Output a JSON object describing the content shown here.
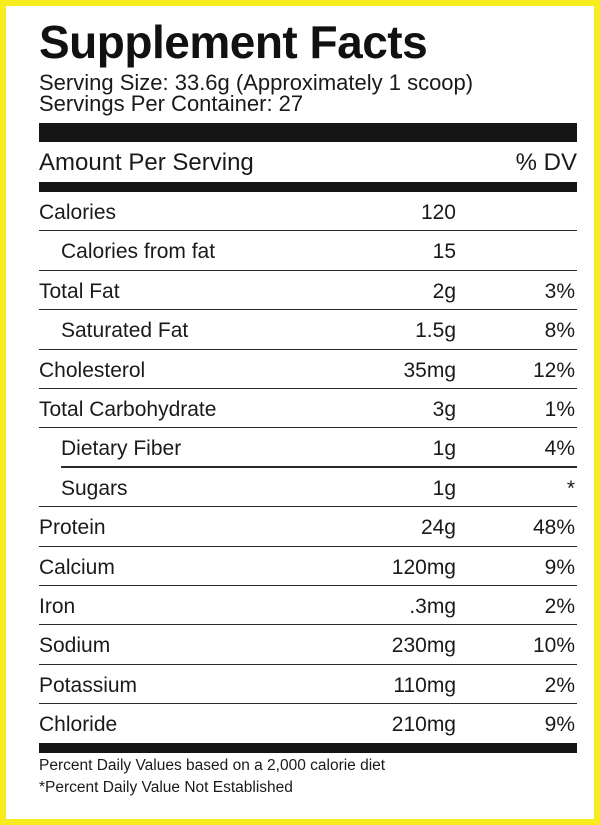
{
  "title": "Supplement Facts",
  "serving_size": "Serving Size: 33.6g (Approximately 1 scoop)",
  "servings_per_container": "Servings Per Container: 27",
  "amount_header": "Amount Per Serving",
  "dv_header": "% DV",
  "rows": [
    {
      "name": "Calories",
      "amount": "120",
      "dv": ""
    },
    {
      "name": "Calories from fat",
      "amount": "15",
      "dv": ""
    },
    {
      "name": "Total Fat",
      "amount": "2g",
      "dv": "3%"
    },
    {
      "name": "Saturated Fat",
      "amount": "1.5g",
      "dv": "8%"
    },
    {
      "name": "Cholesterol",
      "amount": "35mg",
      "dv": "12%"
    },
    {
      "name": "Total Carbohydrate",
      "amount": "3g",
      "dv": "1%"
    },
    {
      "name": "Dietary Fiber",
      "amount": "1g",
      "dv": "4%"
    },
    {
      "name": "Sugars",
      "amount": "1g",
      "dv": "*"
    },
    {
      "name": "Protein",
      "amount": "24g",
      "dv": "48%"
    },
    {
      "name": "Calcium",
      "amount": "120mg",
      "dv": "9%"
    },
    {
      "name": "Iron",
      "amount": ".3mg",
      "dv": "2%"
    },
    {
      "name": "Sodium",
      "amount": "230mg",
      "dv": "10%"
    },
    {
      "name": "Potassium",
      "amount": "110mg",
      "dv": "2%"
    },
    {
      "name": "Chloride",
      "amount": "210mg",
      "dv": "9%"
    }
  ],
  "footnotes": [
    "Percent Daily Values based on a 2,000 calorie diet",
    "*Percent Daily Value Not Established"
  ],
  "colors": {
    "border": "#f7ec1e",
    "ink": "#151515"
  }
}
